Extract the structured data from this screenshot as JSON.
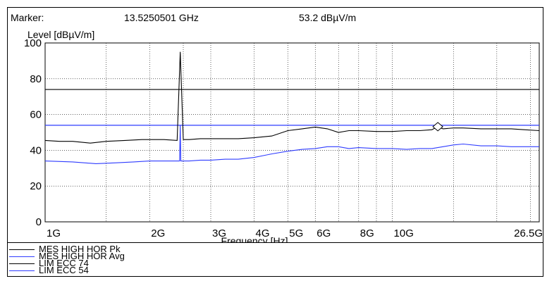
{
  "header": {
    "marker_label": "Marker:",
    "marker_freq": "13.5250501 GHz",
    "marker_level": "53.2 dBµV/m"
  },
  "chart_data": {
    "type": "line",
    "xlabel": "Frequency [Hz]",
    "ylabel": "Level [dBµV/m]",
    "xscale": "log",
    "xlim_ghz": [
      1,
      26.5
    ],
    "ylim": [
      0,
      100
    ],
    "x_ticks": [
      {
        "value": 1,
        "label": "1G"
      },
      {
        "value": 2,
        "label": "2G"
      },
      {
        "value": 3,
        "label": "3G"
      },
      {
        "value": 4,
        "label": "4G"
      },
      {
        "value": 5,
        "label": "5G"
      },
      {
        "value": 6,
        "label": "6G"
      },
      {
        "value": 8,
        "label": "8G"
      },
      {
        "value": 10,
        "label": "10G"
      },
      {
        "value": 26.5,
        "label": "26.5G"
      }
    ],
    "x_gridlines": [
      1.5,
      2,
      2.5,
      3,
      4,
      5,
      6,
      7,
      8,
      9,
      10,
      15,
      20,
      25
    ],
    "y_ticks": [
      {
        "value": 0,
        "label": "0"
      },
      {
        "value": 20,
        "label": "20"
      },
      {
        "value": 40,
        "label": "40"
      },
      {
        "value": 60,
        "label": "60"
      },
      {
        "value": 80,
        "label": "80"
      },
      {
        "value": 100,
        "label": "100"
      }
    ],
    "series": [
      {
        "name": "MES HIGH HOR Pk",
        "color": "#000000",
        "x": [
          1,
          1.1,
          1.2,
          1.35,
          1.5,
          1.7,
          1.9,
          2.0,
          2.2,
          2.4,
          2.45,
          2.5,
          2.6,
          2.8,
          3.0,
          3.3,
          3.6,
          4.0,
          4.5,
          5.0,
          5.5,
          6.0,
          6.5,
          7.0,
          7.5,
          8.0,
          9.0,
          10.0,
          11.0,
          12.0,
          13.0,
          13.5,
          14.0,
          15.0,
          16.0,
          18.0,
          20.0,
          22.0,
          24.0,
          26.5
        ],
        "y": [
          45.5,
          45,
          45,
          44,
          45,
          45.5,
          46,
          46,
          46,
          45.5,
          95,
          46,
          46,
          46.5,
          46.5,
          46.5,
          46.5,
          47,
          48,
          51,
          52,
          53,
          52,
          50,
          51,
          51,
          50.5,
          50.5,
          51,
          51,
          51.5,
          53.2,
          52,
          52.5,
          52.5,
          52,
          52,
          52,
          51.5,
          51
        ]
      },
      {
        "name": "MES HIGH HOR Avg",
        "color": "#2f3cff",
        "x": [
          1,
          1.2,
          1.4,
          1.6,
          1.8,
          2.0,
          2.2,
          2.44,
          2.45,
          2.46,
          2.6,
          2.8,
          3.0,
          3.3,
          3.6,
          4.0,
          4.5,
          5.0,
          5.5,
          6.0,
          6.5,
          7.0,
          7.5,
          8.0,
          9.0,
          10.0,
          11.0,
          12.0,
          13.0,
          14.0,
          15.0,
          16.0,
          18.0,
          20.0,
          22.0,
          24.0,
          26.5
        ],
        "y": [
          34,
          33.5,
          32.5,
          33,
          33.5,
          34,
          34,
          34,
          54,
          34,
          34,
          34.5,
          34.5,
          35,
          35,
          36,
          38,
          39.5,
          40.5,
          41,
          42,
          42,
          41,
          41.5,
          41,
          41,
          40.5,
          41,
          41,
          42,
          43,
          43.5,
          42.5,
          42.5,
          42,
          42,
          42
        ]
      },
      {
        "name": "LIM ECC 74",
        "color": "#000000",
        "x": [
          1,
          26.5
        ],
        "y": [
          74,
          74
        ]
      },
      {
        "name": "LIM ECC 54",
        "color": "#2f3cff",
        "x": [
          1,
          26.5
        ],
        "y": [
          54,
          54
        ]
      }
    ],
    "legend_labels": [
      "MES HIGH HOR Pk",
      "MES HIGH HOR Avg",
      "LIM ECC 74",
      "LIM ECC 54"
    ],
    "marker": {
      "x": 13.5250501,
      "y": 53.2
    },
    "grid": true,
    "legend_position": "bottom"
  }
}
